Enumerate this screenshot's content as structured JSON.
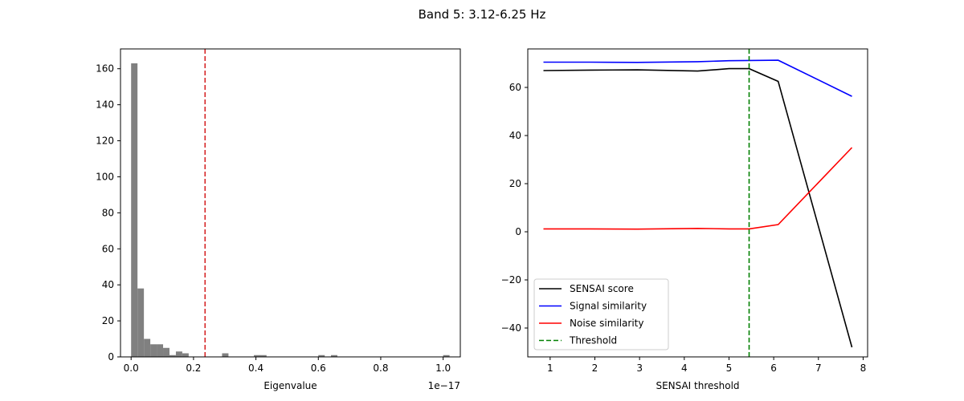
{
  "figure": {
    "title": "Band 5: 3.12-6.25 Hz"
  },
  "chart_data": [
    {
      "type": "bar",
      "title": "",
      "xlabel": "Eigenvalue",
      "ylabel": "",
      "x_offset_label": "1e−17",
      "xlim": [
        -0.034,
        1.055
      ],
      "ylim": [
        0,
        171
      ],
      "xticks": [
        0.0,
        0.2,
        0.4,
        0.6,
        0.8,
        1.0
      ],
      "xtick_labels": [
        "0.0",
        "0.2",
        "0.4",
        "0.6",
        "0.8",
        "1.0"
      ],
      "yticks": [
        0,
        20,
        40,
        60,
        80,
        100,
        120,
        140,
        160
      ],
      "ytick_labels": [
        "0",
        "20",
        "40",
        "60",
        "80",
        "100",
        "120",
        "140",
        "160"
      ],
      "bin_width": 0.0205,
      "bin_starts": [
        0.0,
        0.0205,
        0.041,
        0.0615,
        0.082,
        0.1025,
        0.123,
        0.1435,
        0.164,
        0.2915,
        0.3935,
        0.4135,
        0.6,
        0.6405,
        1.0
      ],
      "counts": [
        163,
        38,
        10,
        7,
        7,
        5,
        1,
        3,
        2,
        2,
        1,
        1,
        1,
        1,
        1
      ],
      "bar_color": "#808080",
      "threshold_line": {
        "x": 0.237,
        "color": "#d62728",
        "style": "dashed"
      }
    },
    {
      "type": "line",
      "title": "",
      "xlabel": "SENSAI threshold",
      "ylabel": "",
      "xlim": [
        0.5,
        8.1
      ],
      "ylim": [
        -52,
        76
      ],
      "xticks": [
        1,
        2,
        3,
        4,
        5,
        6,
        7,
        8
      ],
      "xtick_labels": [
        "1",
        "2",
        "3",
        "4",
        "5",
        "6",
        "7",
        "8"
      ],
      "yticks": [
        -40,
        -20,
        0,
        20,
        40,
        60
      ],
      "ytick_labels": [
        "−40",
        "−20",
        "0",
        "20",
        "40",
        "60"
      ],
      "x": [
        0.85,
        1.9,
        2.95,
        4.3,
        5.0,
        5.45,
        6.1,
        7.75
      ],
      "series": [
        {
          "name": "SENSAI score",
          "color": "#000000",
          "values": [
            67,
            67.2,
            67.3,
            66.8,
            67.8,
            67.8,
            62.5,
            -48
          ]
        },
        {
          "name": "Signal similarity",
          "color": "#0000ff",
          "values": [
            70.5,
            70.5,
            70.4,
            70.7,
            71.1,
            71.2,
            71.3,
            56.3
          ]
        },
        {
          "name": "Noise similarity",
          "color": "#ff0000",
          "values": [
            1.2,
            1.2,
            1.1,
            1.4,
            1.2,
            1.2,
            3.0,
            35
          ]
        }
      ],
      "threshold_line": {
        "name": "Threshold",
        "x": 5.45,
        "color": "#008000",
        "style": "dashed"
      },
      "legend_position": "lower-left"
    }
  ]
}
